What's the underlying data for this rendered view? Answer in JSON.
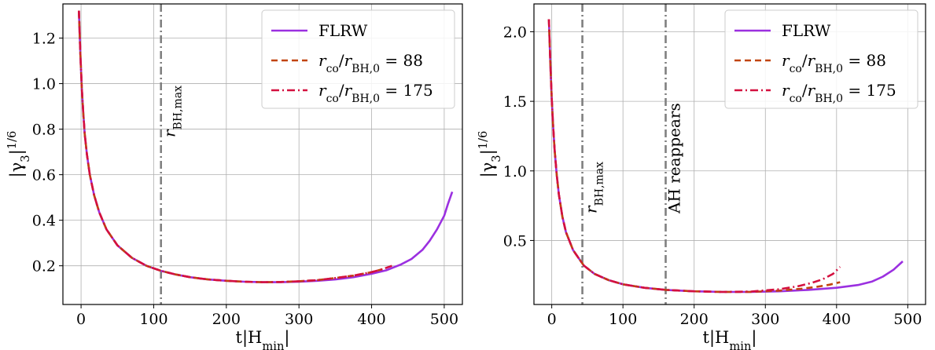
{
  "chart_data": [
    {
      "type": "line",
      "xlabel": "t|H_min|",
      "ylabel": "|γ3|^{1/6}",
      "xlim": [
        -25,
        525
      ],
      "ylim": [
        0.03,
        1.35
      ],
      "xticks": [
        0,
        100,
        200,
        300,
        400,
        500
      ],
      "yticks": [
        0.2,
        0.4,
        0.6,
        0.8,
        1.0,
        1.2
      ],
      "ytick_labels": [
        "0.2",
        "0.4",
        "0.6",
        "0.8",
        "1.0",
        "1.2"
      ],
      "grid": true,
      "legend_position": "top-right",
      "series": [
        {
          "name": "FLRW",
          "style": "solid",
          "color": "#9b30e0",
          "x": [
            -3,
            -1,
            1,
            3,
            5,
            8,
            12,
            18,
            25,
            35,
            50,
            70,
            90,
            110,
            130,
            150,
            175,
            200,
            225,
            250,
            275,
            300,
            325,
            350,
            375,
            400,
            420,
            440,
            455,
            470,
            480,
            490,
            500,
            505,
            511
          ],
          "y": [
            1.32,
            1.13,
            0.98,
            0.87,
            0.78,
            0.69,
            0.6,
            0.51,
            0.435,
            0.36,
            0.29,
            0.235,
            0.2,
            0.178,
            0.162,
            0.15,
            0.14,
            0.134,
            0.13,
            0.128,
            0.128,
            0.13,
            0.134,
            0.14,
            0.15,
            0.165,
            0.18,
            0.205,
            0.23,
            0.27,
            0.31,
            0.36,
            0.42,
            0.47,
            0.525
          ]
        },
        {
          "name": "r_co/r_BH,0 = 88",
          "style": "dashed",
          "color": "#c1440e",
          "x": [
            -3,
            -1,
            1,
            3,
            5,
            8,
            12,
            18,
            25,
            35,
            50,
            70,
            90,
            110,
            130,
            150,
            175,
            200,
            225,
            250,
            275,
            300,
            325,
            350,
            375,
            400,
            415
          ],
          "y": [
            1.32,
            1.13,
            0.98,
            0.87,
            0.78,
            0.69,
            0.6,
            0.51,
            0.435,
            0.36,
            0.29,
            0.235,
            0.2,
            0.178,
            0.162,
            0.15,
            0.14,
            0.134,
            0.13,
            0.128,
            0.129,
            0.132,
            0.137,
            0.146,
            0.157,
            0.172,
            0.185
          ]
        },
        {
          "name": "r_co/r_BH,0 = 175",
          "style": "dashdot",
          "color": "#d4103f",
          "x": [
            -3,
            -1,
            1,
            3,
            5,
            8,
            12,
            18,
            25,
            35,
            50,
            70,
            90,
            110,
            130,
            150,
            175,
            200,
            225,
            250,
            275,
            300,
            325,
            350,
            375,
            400,
            415,
            428
          ],
          "y": [
            1.32,
            1.13,
            0.98,
            0.87,
            0.78,
            0.69,
            0.6,
            0.51,
            0.435,
            0.36,
            0.29,
            0.235,
            0.2,
            0.178,
            0.162,
            0.15,
            0.14,
            0.134,
            0.13,
            0.128,
            0.129,
            0.132,
            0.137,
            0.146,
            0.157,
            0.172,
            0.185,
            0.2
          ]
        }
      ],
      "vlines": [
        {
          "x": 110,
          "label": "r_BH,max",
          "color": "#808080",
          "style": "dashdot"
        }
      ]
    },
    {
      "type": "line",
      "xlabel": "t|H_min|",
      "ylabel": "|γ3|^{1/6}",
      "xlim": [
        -25,
        525
      ],
      "ylim": [
        0.04,
        2.2
      ],
      "xticks": [
        0,
        100,
        200,
        300,
        400,
        500
      ],
      "yticks": [
        0.5,
        1.0,
        1.5,
        2.0
      ],
      "ytick_labels": [
        "0.5",
        "1.0",
        "1.5",
        "2.0"
      ],
      "grid": true,
      "legend_position": "top-right",
      "series": [
        {
          "name": "FLRW",
          "style": "solid",
          "color": "#9b30e0",
          "x": [
            -4,
            -2,
            0,
            2,
            4,
            7,
            10,
            15,
            20,
            30,
            45,
            60,
            80,
            100,
            130,
            160,
            200,
            240,
            280,
            320,
            360,
            400,
            430,
            450,
            465,
            480,
            493
          ],
          "y": [
            2.09,
            1.78,
            1.52,
            1.32,
            1.15,
            0.97,
            0.83,
            0.67,
            0.56,
            0.43,
            0.32,
            0.26,
            0.215,
            0.185,
            0.16,
            0.145,
            0.135,
            0.13,
            0.13,
            0.135,
            0.145,
            0.16,
            0.18,
            0.205,
            0.24,
            0.29,
            0.35
          ]
        },
        {
          "name": "r_co/r_BH,0 = 88",
          "style": "dashed",
          "color": "#c1440e",
          "x": [
            -4,
            -2,
            0,
            2,
            4,
            7,
            10,
            15,
            20,
            30,
            45,
            60,
            80,
            100,
            130,
            160,
            200,
            240,
            280,
            320,
            350,
            370,
            390,
            405
          ],
          "y": [
            2.09,
            1.78,
            1.52,
            1.32,
            1.15,
            0.97,
            0.83,
            0.67,
            0.56,
            0.43,
            0.32,
            0.26,
            0.215,
            0.185,
            0.16,
            0.145,
            0.135,
            0.13,
            0.13,
            0.14,
            0.153,
            0.165,
            0.182,
            0.2
          ]
        },
        {
          "name": "r_co/r_BH,0 = 175",
          "style": "dashdot",
          "color": "#d4103f",
          "x": [
            -4,
            -2,
            0,
            2,
            4,
            7,
            10,
            15,
            20,
            30,
            45,
            60,
            80,
            100,
            130,
            160,
            200,
            240,
            280,
            320,
            345,
            365,
            380,
            395,
            405
          ],
          "y": [
            2.09,
            1.78,
            1.52,
            1.32,
            1.15,
            0.97,
            0.83,
            0.67,
            0.56,
            0.43,
            0.32,
            0.26,
            0.215,
            0.185,
            0.16,
            0.145,
            0.135,
            0.13,
            0.133,
            0.15,
            0.17,
            0.195,
            0.22,
            0.26,
            0.31
          ]
        }
      ],
      "vlines": [
        {
          "x": 43,
          "label": "r_BH,max",
          "color": "#808080",
          "style": "dashdot"
        },
        {
          "x": 160,
          "label": "AH reappears",
          "color": "#808080",
          "style": "dashdot"
        }
      ]
    }
  ]
}
